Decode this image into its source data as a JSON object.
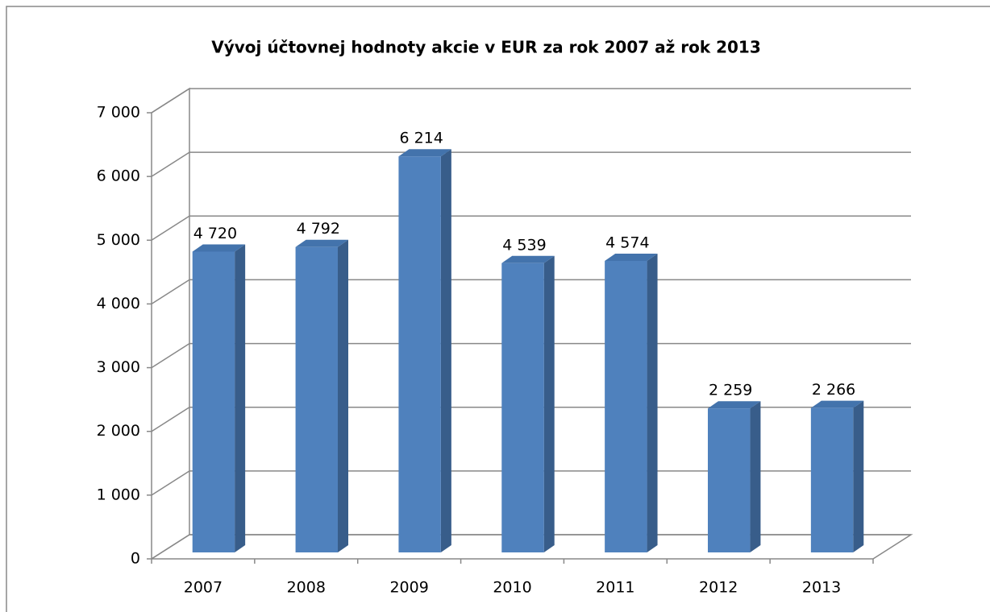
{
  "chart_data": {
    "type": "bar3d",
    "title": "Vývoj účtovnej hodnoty akcie v EUR za rok 2007 až rok 2013",
    "categories": [
      "2007",
      "2008",
      "2009",
      "2010",
      "2011",
      "2012",
      "2013"
    ],
    "values": [
      4720,
      4792,
      6214,
      4539,
      4574,
      2259,
      2266
    ],
    "value_labels": [
      "4 720",
      "4 792",
      "6 214",
      "4 539",
      "4 574",
      "2 259",
      "2 266"
    ],
    "color": "#4f81bd",
    "ylim": [
      0,
      7000
    ],
    "yticks": [
      0,
      {
        "value": 1000,
        "label": "1 000"
      },
      {
        "value": 2000,
        "label": "2 000"
      },
      {
        "value": 3000,
        "label": "3 000"
      },
      {
        "value": 4000,
        "label": "4 000"
      },
      {
        "value": 5000,
        "label": "5 000"
      },
      {
        "value": 6000,
        "label": "6 000"
      },
      {
        "value": 7000,
        "label": "7 000"
      }
    ],
    "grid": true
  }
}
